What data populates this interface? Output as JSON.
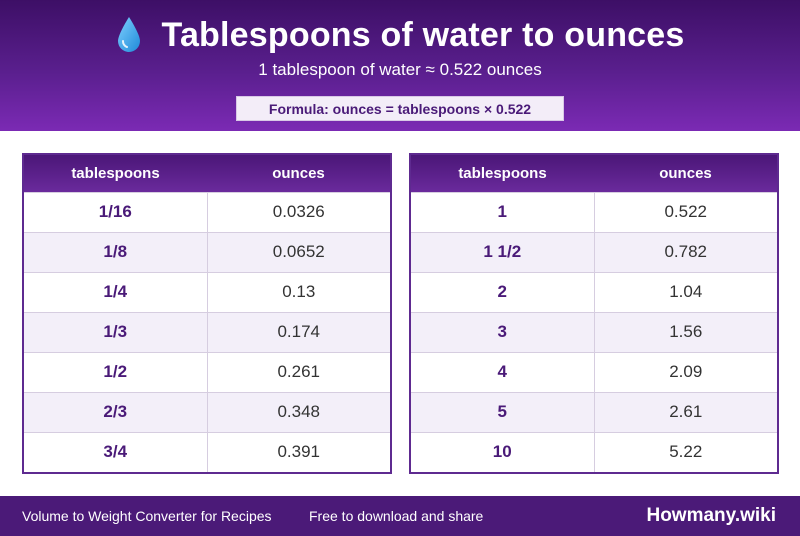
{
  "header": {
    "icon": "water-drop-icon",
    "title": "Tablespoons of water to ounces",
    "subtitle": "1 tablespoon of water ≈ 0.522 ounces",
    "formula": "Formula: ounces = tablespoons × 0.522"
  },
  "tables": {
    "left": {
      "headers": [
        "tablespoons",
        "ounces"
      ],
      "rows": [
        [
          "1/16",
          "0.0326"
        ],
        [
          "1/8",
          "0.0652"
        ],
        [
          "1/4",
          "0.13"
        ],
        [
          "1/3",
          "0.174"
        ],
        [
          "1/2",
          "0.261"
        ],
        [
          "2/3",
          "0.348"
        ],
        [
          "3/4",
          "0.391"
        ]
      ]
    },
    "right": {
      "headers": [
        "tablespoons",
        "ounces"
      ],
      "rows": [
        [
          "1",
          "0.522"
        ],
        [
          "1 1/2",
          "0.782"
        ],
        [
          "2",
          "1.04"
        ],
        [
          "3",
          "1.56"
        ],
        [
          "4",
          "2.09"
        ],
        [
          "5",
          "2.61"
        ],
        [
          "10",
          "5.22"
        ]
      ]
    }
  },
  "footer": {
    "left_text": "Volume to Weight Converter for Recipes",
    "middle_text": "Free to download and share",
    "brand": "Howmany.wiki"
  },
  "colors": {
    "header_top": "#3d0f66",
    "header_bottom": "#7b2ab4",
    "accent_purple": "#4a1a78",
    "row_stripe": "#f3eff9",
    "drop_blue": "#3aa8e8"
  }
}
